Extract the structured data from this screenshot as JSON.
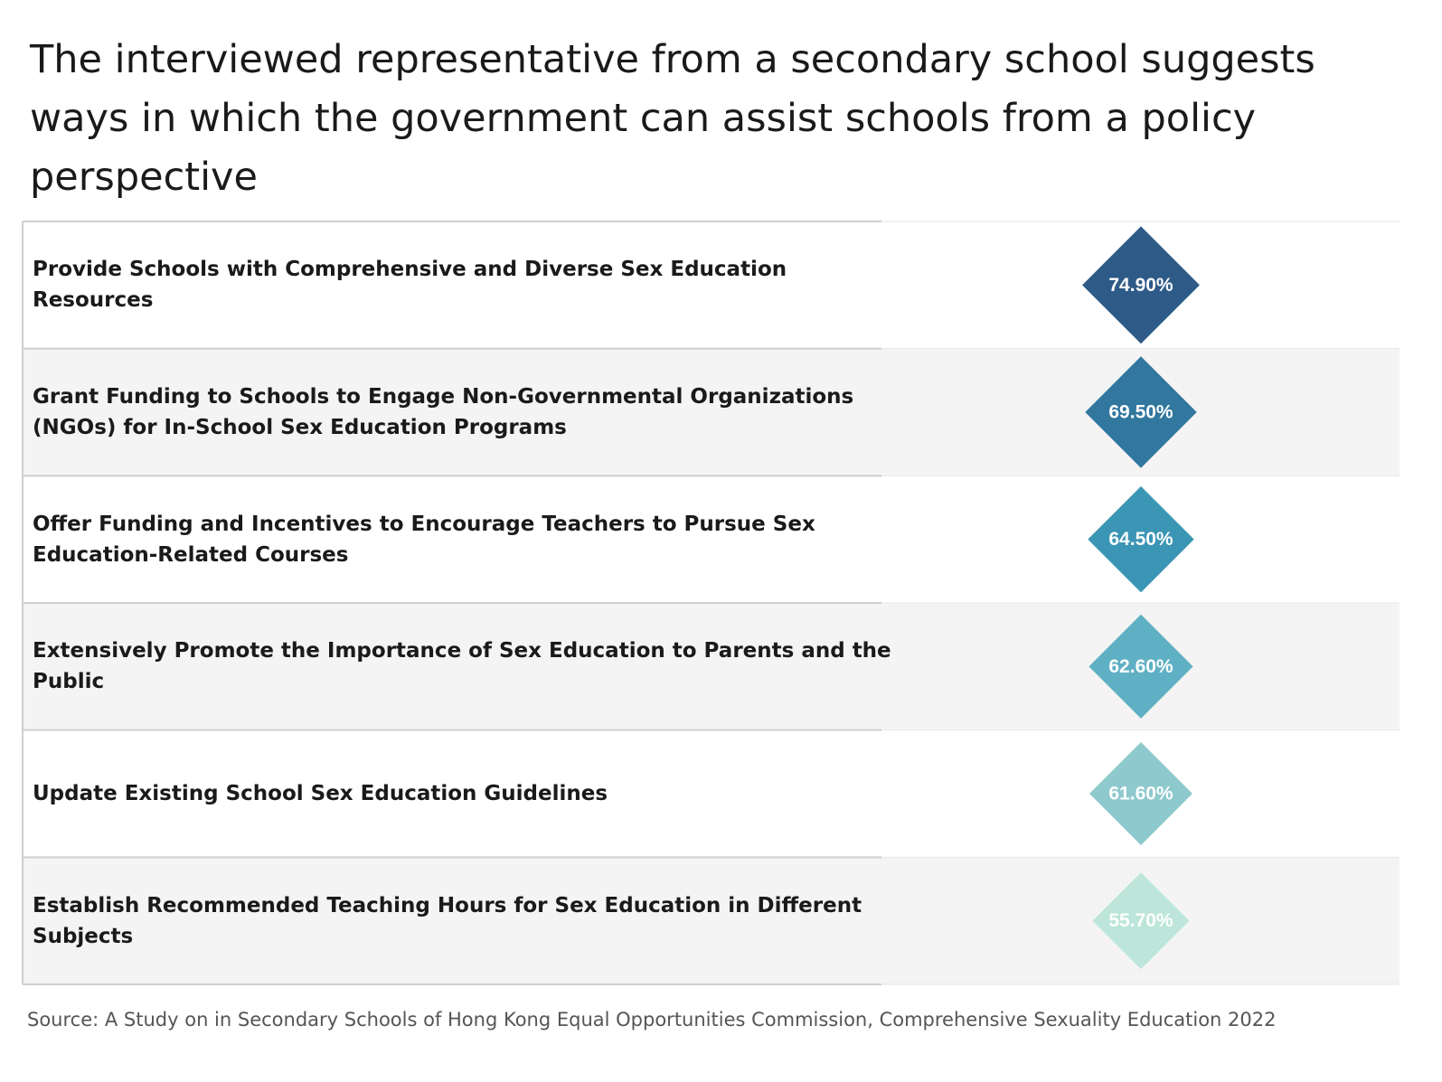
{
  "title": "The interviewed representative from a secondary school suggests ways in which the government can assist schools from a policy perspective",
  "source": "Source: A Study on in Secondary Schools of Hong Kong Equal Opportunities Commission, Comprehensive Sexuality Education 2022",
  "chart_data": {
    "type": "table",
    "categories": [
      "Provide Schools with Comprehensive and Diverse Sex Education Resources",
      "Grant Funding to Schools to Engage Non-Governmental Organizations (NGOs) for In-School Sex Education Programs",
      "Offer Funding and Incentives to Encourage Teachers to Pursue Sex Education-Related Courses",
      "Extensively Promote the Importance of Sex Education to Parents and the Public",
      "Update Existing School Sex Education Guidelines",
      "Establish Recommended Teaching Hours for Sex Education in Different Subjects"
    ],
    "values": [
      74.9,
      69.5,
      64.5,
      62.6,
      61.6,
      55.7
    ],
    "value_labels": [
      "74.90%",
      "69.50%",
      "64.50%",
      "62.60%",
      "61.60%",
      "55.70%"
    ],
    "colors": [
      "#2e5a87",
      "#31779e",
      "#3b95b4",
      "#5fb0c4",
      "#8ec9cd",
      "#bde5da"
    ],
    "row_backgrounds": [
      "#ffffff",
      "#f4f4f4"
    ],
    "grid": true,
    "legend": "none"
  }
}
